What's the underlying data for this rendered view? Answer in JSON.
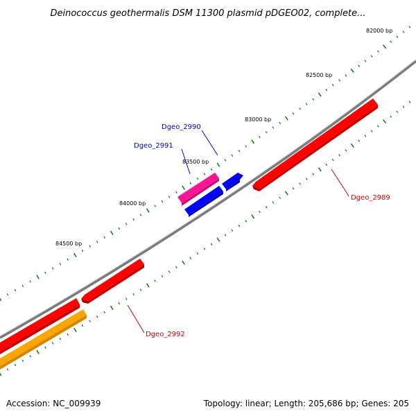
{
  "title": "Deinococcus geothermalis DSM 11300 plasmid pDGEO02, complete...",
  "footer": {
    "accession": "Accession: NC_009939",
    "summary": "Topology: linear; Length: 205,686 bp; Genes: 205"
  },
  "ticks": [
    "82000 bp",
    "82500 bp",
    "83000 bp",
    "83500 bp",
    "84000 bp",
    "84500 bp"
  ],
  "genes": [
    {
      "name": "Dgeo_2990",
      "color": "#0000cc"
    },
    {
      "name": "Dgeo_2991",
      "color": "#0000cc"
    },
    {
      "name": "Dgeo_2989",
      "color": "#cc0000"
    },
    {
      "name": "Dgeo_2992",
      "color": "#cc0000"
    }
  ],
  "colors": {
    "backbone": "#7a7a7a",
    "tick": "#1a7a1a",
    "red_feature": "#ff0000",
    "blue_feature": "#0000ff",
    "pink_feature": "#ff1493",
    "orange_feature": "#ffa500"
  }
}
